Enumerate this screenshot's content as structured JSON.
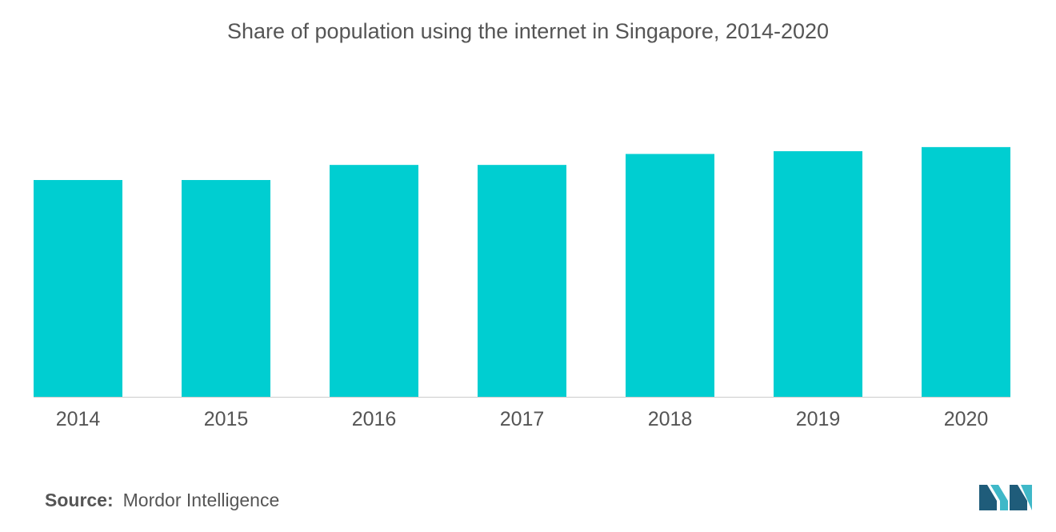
{
  "chart_data": {
    "type": "bar",
    "title": "Share of population using the internet in Singapore, 2014-2020",
    "categories": [
      "2014",
      "2015",
      "2016",
      "2017",
      "2018",
      "2019",
      "2020"
    ],
    "values": [
      79,
      79,
      84.5,
      84.5,
      88.5,
      89.5,
      91
    ],
    "ylim": [
      0,
      100
    ],
    "grid": false,
    "bar_color": "#00CED1",
    "axis_line_color": "#cccccc"
  },
  "footer": {
    "source_label": "Source:",
    "source_text": "Mordor Intelligence"
  },
  "colors": {
    "text": "#555555",
    "logo_dark": "#1F5C7A",
    "logo_light": "#3FB8C8"
  },
  "logo_icon": "mordor-intelligence-logo-icon"
}
